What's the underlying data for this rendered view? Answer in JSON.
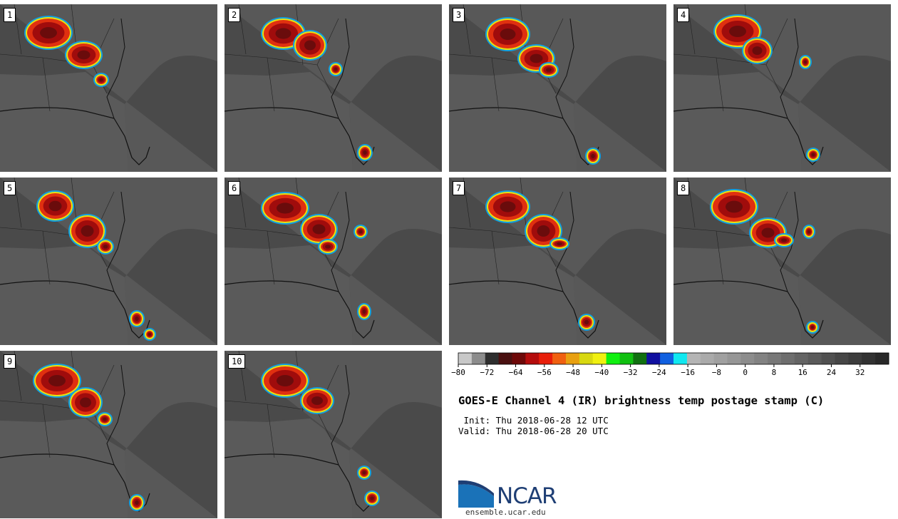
{
  "panels": [
    {
      "label": "1"
    },
    {
      "label": "2"
    },
    {
      "label": "3"
    },
    {
      "label": "4"
    },
    {
      "label": "5"
    },
    {
      "label": "6"
    },
    {
      "label": "7"
    },
    {
      "label": "8"
    },
    {
      "label": "9"
    },
    {
      "label": "10"
    }
  ],
  "colorbar": {
    "ticks": [
      "−80",
      "−72",
      "−64",
      "−56",
      "−48",
      "−40",
      "−32",
      "−24",
      "−16",
      "−8",
      "0",
      "8",
      "16",
      "24",
      "32"
    ],
    "colors": [
      "#c8c8c8",
      "#8c8c8c",
      "#2e2e2e",
      "#4a1010",
      "#6e0808",
      "#b40c0c",
      "#e81e0a",
      "#f06010",
      "#e8a010",
      "#d8d810",
      "#f0f010",
      "#10f010",
      "#10c010",
      "#107010",
      "#1010a0",
      "#1060e0",
      "#10e8f0",
      "#b4b4b4",
      "#aaaaaa",
      "#a0a0a0",
      "#969696",
      "#8c8c8c",
      "#828282",
      "#787878",
      "#6e6e6e",
      "#646464",
      "#5a5a5a",
      "#505050",
      "#464646",
      "#3c3c3c",
      "#323232",
      "#282828"
    ]
  },
  "title": "GOES-E Channel 4 (IR) brightness temp postage stamp (C)",
  "init": " Init: Thu 2018-06-28 12 UTC",
  "valid": "Valid: Thu 2018-06-28 20 UTC",
  "logo": {
    "text": "NCAR",
    "url": "ensemble.ucar.edu"
  }
}
